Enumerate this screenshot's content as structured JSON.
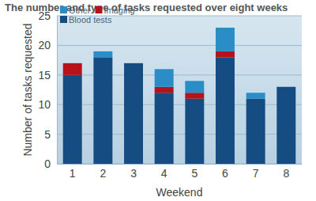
{
  "chart_data": {
    "type": "bar",
    "stacked": true,
    "title": "The number and type of tasks requested over eight weeks",
    "x_label": "Weekend",
    "y_label": "Number of tasks requested",
    "categories": [
      "1",
      "2",
      "3",
      "4",
      "5",
      "6",
      "7",
      "8"
    ],
    "series": [
      {
        "name": "Blood tests",
        "color": "#154c82",
        "values": [
          15,
          18,
          17,
          12,
          11,
          18,
          11,
          13
        ]
      },
      {
        "name": "Imaging",
        "color": "#b5121b",
        "values": [
          2,
          0,
          0,
          1,
          1,
          1,
          0,
          0
        ]
      },
      {
        "name": "Other",
        "color": "#2a8dc5",
        "values": [
          0,
          1,
          0,
          3,
          2,
          4,
          1,
          0
        ]
      }
    ],
    "ylim": [
      0,
      25
    ],
    "yticks": [
      0,
      5,
      10,
      15,
      20,
      25
    ],
    "grid": true,
    "legend": "upper left"
  }
}
